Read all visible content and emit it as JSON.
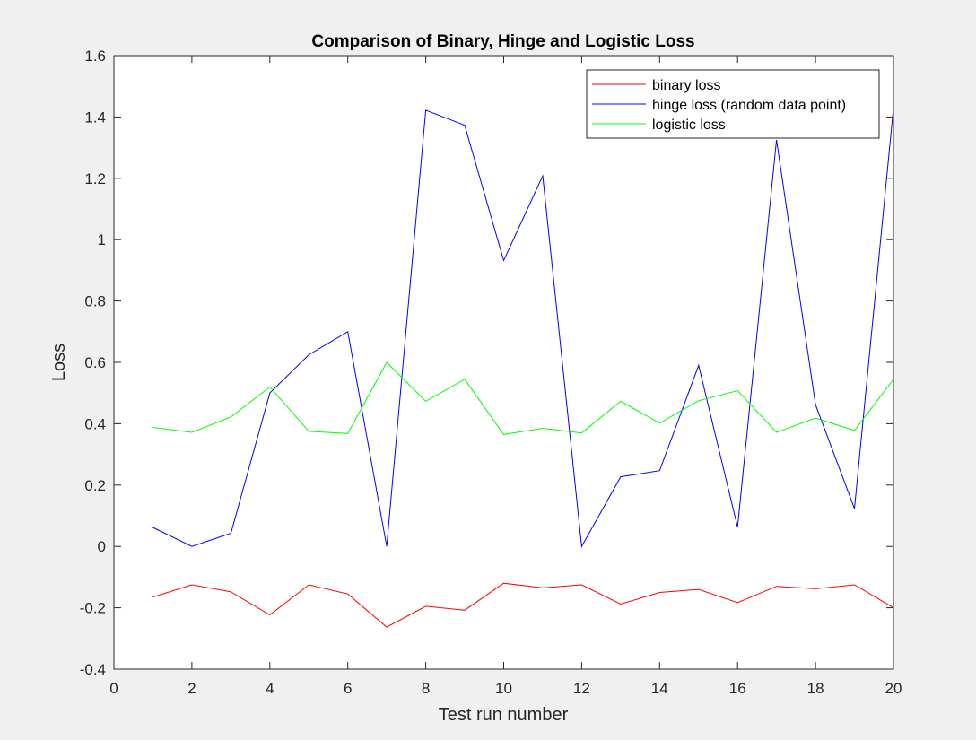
{
  "chart_data": {
    "type": "line",
    "title": "Comparison of Binary, Hinge and Logistic Loss",
    "xlabel": "Test run number",
    "ylabel": "Loss",
    "xlim": [
      0,
      20
    ],
    "ylim": [
      -0.4,
      1.6
    ],
    "xticks": [
      0,
      2,
      4,
      6,
      8,
      10,
      12,
      14,
      16,
      18,
      20
    ],
    "yticks": [
      -0.4,
      -0.2,
      0,
      0.2,
      0.4,
      0.6,
      0.8,
      1,
      1.2,
      1.4,
      1.6
    ],
    "grid": false,
    "legend_position": "top-right",
    "x": [
      1,
      2,
      3,
      4,
      5,
      6,
      7,
      8,
      9,
      10,
      11,
      12,
      13,
      14,
      15,
      16,
      17,
      18,
      19,
      20
    ],
    "series": [
      {
        "name": "binary loss",
        "color": "#ff0000",
        "values": [
          -0.165,
          -0.125,
          -0.148,
          -0.223,
          -0.125,
          -0.155,
          -0.263,
          -0.195,
          -0.208,
          -0.12,
          -0.135,
          -0.125,
          -0.188,
          -0.15,
          -0.14,
          -0.183,
          -0.13,
          -0.138,
          -0.125,
          -0.2
        ]
      },
      {
        "name": "hinge loss (random data point)",
        "color": "#0000ff",
        "values": [
          0.062,
          0.0,
          0.043,
          0.5,
          0.625,
          0.7,
          0.0,
          1.422,
          1.373,
          0.932,
          1.208,
          0.0,
          0.227,
          0.247,
          0.59,
          0.063,
          1.325,
          0.462,
          0.123,
          1.43
        ]
      },
      {
        "name": "logistic loss",
        "color": "#00ff00",
        "values": [
          0.388,
          0.372,
          0.422,
          0.52,
          0.375,
          0.368,
          0.6,
          0.473,
          0.545,
          0.365,
          0.385,
          0.37,
          0.473,
          0.402,
          0.475,
          0.508,
          0.372,
          0.418,
          0.378,
          0.545
        ]
      }
    ]
  }
}
